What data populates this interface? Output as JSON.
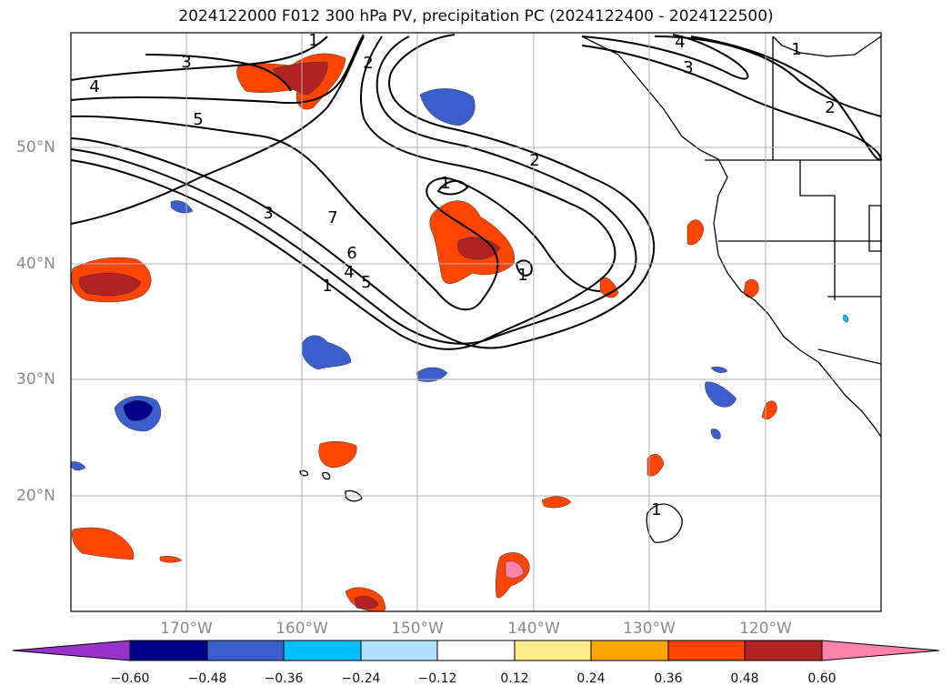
{
  "chart_data": {
    "type": "contour map",
    "title": "2024122000 F012 300 hPa PV, precipitation PC (2024122400 - 2024122500)",
    "lat_ticks": [
      "50°N",
      "40°N",
      "30°N",
      "20°N"
    ],
    "lon_ticks": [
      "170°W",
      "160°W",
      "150°W",
      "140°W",
      "130°W",
      "120°W"
    ],
    "lat_range": [
      10,
      60
    ],
    "lon_range": [
      -180,
      -110
    ],
    "grid": true,
    "pv_contour_labels": [
      "1",
      "2",
      "3",
      "4",
      "5",
      "6",
      "7",
      "1",
      "2",
      "3",
      "4",
      "5",
      "1",
      "1",
      "1",
      "1",
      "2",
      "3",
      "4"
    ],
    "colorbar": {
      "orientation": "horizontal",
      "extend": "both",
      "boundaries": [
        -0.6,
        -0.48,
        -0.36,
        -0.24,
        -0.12,
        0.12,
        0.24,
        0.36,
        0.48,
        0.6
      ],
      "tick_labels": [
        "−0.60",
        "−0.48",
        "−0.36",
        "−0.24",
        "−0.12",
        "0.12",
        "0.24",
        "0.36",
        "0.48",
        "0.60"
      ],
      "colors": [
        "#9932cc",
        "#00008b",
        "#3a5fcd",
        "#00bfff",
        "#b0e2ff",
        "#ffffff",
        "#ffec8b",
        "#ffa500",
        "#ff4500",
        "#b22222",
        "#ff82ab"
      ]
    }
  }
}
